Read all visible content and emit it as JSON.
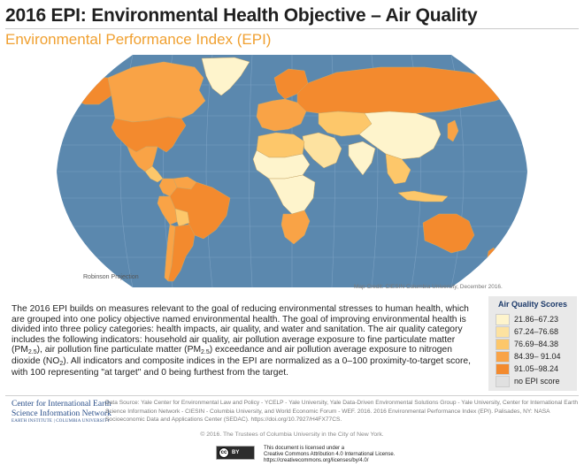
{
  "header": {
    "title": "2016 EPI: Environmental Health Objective – Air Quality",
    "subtitle": "Environmental Performance Index (EPI)"
  },
  "map": {
    "projection_label": "Robinson Projection",
    "credit": "Map Credit: CIESIN Columbia University, December 2016.",
    "ocean_color": "#5b88ae",
    "graticule_color": "#7aa0c2",
    "regions": [
      {
        "name": "Canada",
        "class": 3
      },
      {
        "name": "United States",
        "class": 4
      },
      {
        "name": "Alaska",
        "class": 4
      },
      {
        "name": "Greenland",
        "class": 0
      },
      {
        "name": "Mexico",
        "class": 3
      },
      {
        "name": "Central America",
        "class": 2
      },
      {
        "name": "Colombia",
        "class": 3
      },
      {
        "name": "Venezuela",
        "class": 3
      },
      {
        "name": "Brazil",
        "class": 4
      },
      {
        "name": "Peru",
        "class": 3
      },
      {
        "name": "Bolivia",
        "class": 2
      },
      {
        "name": "Argentina",
        "class": 4
      },
      {
        "name": "Chile",
        "class": 3
      },
      {
        "name": "Western Europe",
        "class": 3
      },
      {
        "name": "Scandinavia",
        "class": 4
      },
      {
        "name": "Russia",
        "class": 4
      },
      {
        "name": "North Africa",
        "class": 2
      },
      {
        "name": "Sahel",
        "class": 0
      },
      {
        "name": "Central Africa",
        "class": 0
      },
      {
        "name": "Southern Africa",
        "class": 3
      },
      {
        "name": "Middle East",
        "class": 1
      },
      {
        "name": "Central Asia",
        "class": 2
      },
      {
        "name": "India",
        "class": 0
      },
      {
        "name": "China",
        "class": 0
      },
      {
        "name": "Southeast Asia",
        "class": 2
      },
      {
        "name": "Japan",
        "class": 3
      },
      {
        "name": "Indonesia",
        "class": 2
      },
      {
        "name": "Australia",
        "class": 4
      },
      {
        "name": "New Zealand",
        "class": 4
      }
    ]
  },
  "description": {
    "text_before_pm25_1": "The 2016 EPI builds on measures relevant to the goal of reducing environmental stresses to human health, which are grouped into one policy objective named environmental health. The goal of improving environmental health is divided into three policy categories: health impacts, air quality, and water and sanitation. The air quality category includes the following indicators: household air quality, air pollution average exposure to fine particulate matter  (PM",
    "sub_25": "2.5",
    "text_mid_1": "), air pollution fine particulate matter (PM",
    "text_mid_2": ") exceedance and air pollution average exposure to nitrogen dioxide (NO",
    "sub_2": "2",
    "text_end": "). All indicators and composite indices in the EPI are normalized as a 0–100 proximity-to-target score, with 100 representing \"at target\" and 0 being furthest from the target."
  },
  "legend": {
    "title": "Air Quality Scores",
    "items": [
      {
        "label": "21.86–67.23",
        "color": "#fef4cc"
      },
      {
        "label": "67.24–76.68",
        "color": "#fde2a0"
      },
      {
        "label": "76.69–84.38",
        "color": "#fdc76a"
      },
      {
        "label": "84.39– 91.04",
        "color": "#f9a346"
      },
      {
        "label": "91.05–98.24",
        "color": "#f38a2e"
      },
      {
        "label": "no EPI score",
        "color": "#e0e0e0"
      }
    ]
  },
  "footer": {
    "ciesin_line1": "Center for International Earth",
    "ciesin_line2": "Science Information Network",
    "ciesin_line3": "EARTH INSTITUTE | COLUMBIA UNIVERSITY",
    "datasource": "Data Source: Yale Center for Environmental Law and Policy - YCELP - Yale University, Yale Data-Driven Environmental Solutions Group - Yale University, Center for International Earth Science Information Network - CIESIN - Columbia University, and World Economic Forum - WEF. 2016. 2016 Environmental Performance Index (EPI). Palisades, NY: NASA Socioeconomic Data and Applications Center (SEDAC). https://doi.org/10.7927/H4FX77CS.",
    "copyright": "© 2016. The Trustees of Columbia University in the City of New York.",
    "cc_badge_cc": "cc",
    "cc_badge_by": "BY",
    "license_line1": "This document is licensed under a",
    "license_line2": "Creative Commons Attribution 4.0 International License.",
    "license_line3": "https://creativecommons.org/licenses/by/4.0/"
  }
}
